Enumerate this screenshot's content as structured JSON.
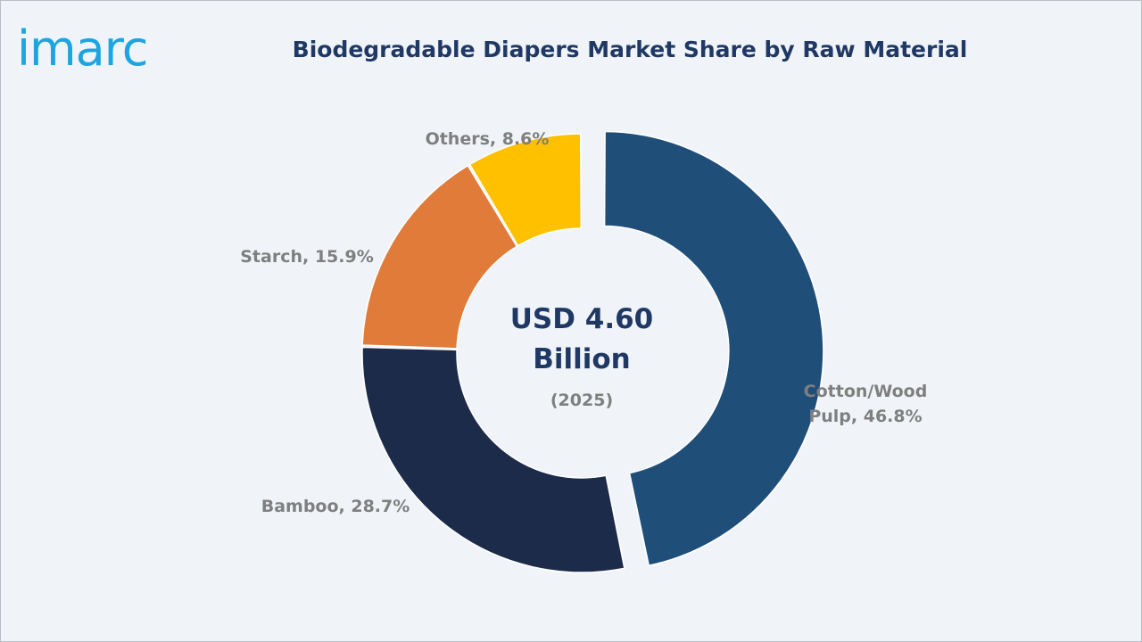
{
  "brand": {
    "logo_text": "imarc",
    "logo_color": "#1ca5df"
  },
  "chart_data": {
    "type": "pie",
    "title": "Biodegradable Diapers Market Share by Raw Material",
    "center": {
      "line1": "USD 4.60",
      "line2": "Billion",
      "line3": "(2025)"
    },
    "categories": [
      "Cotton/Wood Pulp",
      "Bamboo",
      "Starch",
      "Others"
    ],
    "values": [
      46.8,
      28.7,
      15.9,
      8.6
    ],
    "labels": [
      [
        "Cotton/Wood",
        "Pulp, 46.8%"
      ],
      [
        "Bamboo, 28.7%"
      ],
      [
        "Starch, 15.9%"
      ],
      [
        "Others, 8.6%"
      ]
    ],
    "colors": [
      "#1f4e79",
      "#1c2b4a",
      "#e07b39",
      "#ffc000"
    ],
    "exploded": [
      "Cotton/Wood Pulp"
    ],
    "legend": "none"
  }
}
